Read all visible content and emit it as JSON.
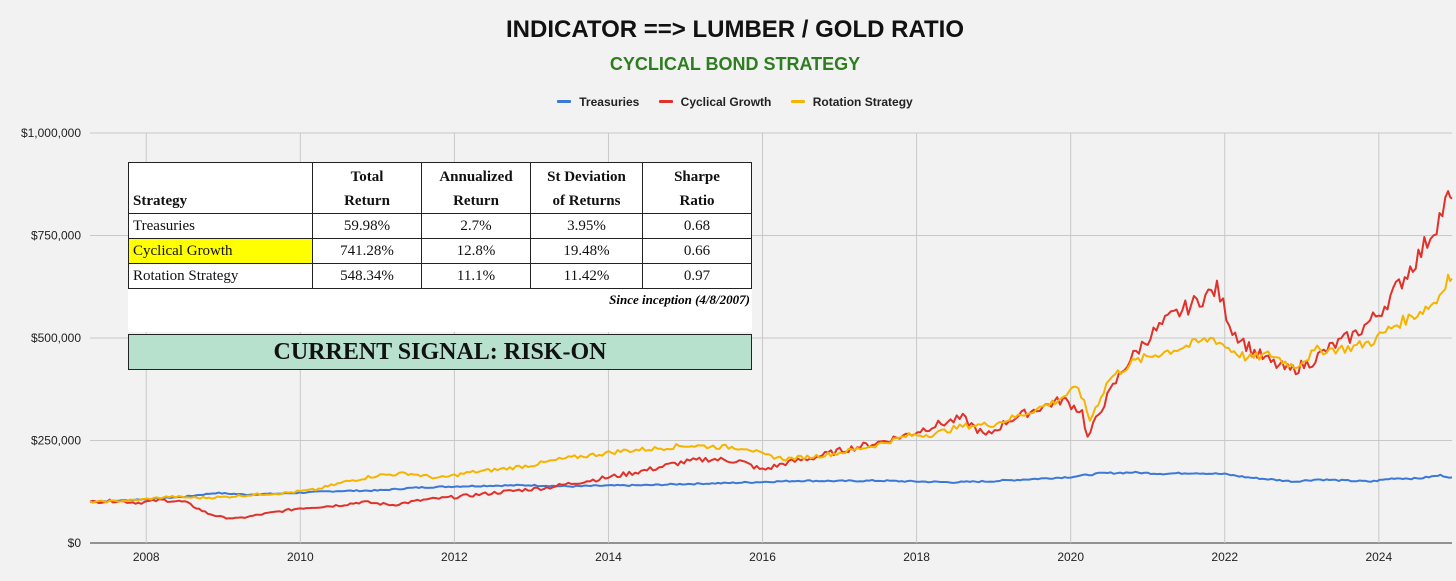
{
  "chart_data": {
    "type": "line",
    "title": "INDICATOR ==> LUMBER / GOLD RATIO",
    "subtitle": "CYCLICAL BOND STRATEGY",
    "legend_position": "top-center",
    "grid": true,
    "y_ticks": [
      "$1,000,000",
      "$750,000",
      "$500,000",
      "$250,000",
      "$0"
    ],
    "y_tick_values": [
      1000000,
      750000,
      500000,
      250000,
      0
    ],
    "x_ticks": [
      "2008",
      "2010",
      "2012",
      "2014",
      "2016",
      "2018",
      "2020",
      "2022",
      "2024"
    ],
    "x_tick_values": [
      2008,
      2010,
      2012,
      2014,
      2016,
      2018,
      2020,
      2022,
      2024
    ],
    "xlim": [
      2007.27,
      2024.95
    ],
    "ylim": [
      0,
      1000000
    ],
    "series": [
      {
        "name": "Treasuries",
        "color": "#3c78d8",
        "points": [
          [
            2007.27,
            100000
          ],
          [
            2007.6,
            103000
          ],
          [
            2008.0,
            107000
          ],
          [
            2008.5,
            113000
          ],
          [
            2008.9,
            122000
          ],
          [
            2009.3,
            118000
          ],
          [
            2009.8,
            121000
          ],
          [
            2010.5,
            127000
          ],
          [
            2011.0,
            128000
          ],
          [
            2011.5,
            135000
          ],
          [
            2012.0,
            138000
          ],
          [
            2012.5,
            140000
          ],
          [
            2013.0,
            141000
          ],
          [
            2013.5,
            138000
          ],
          [
            2014.0,
            140000
          ],
          [
            2014.5,
            141000
          ],
          [
            2015.0,
            144000
          ],
          [
            2015.5,
            146000
          ],
          [
            2016.0,
            149000
          ],
          [
            2016.5,
            152000
          ],
          [
            2017.0,
            151000
          ],
          [
            2017.5,
            152000
          ],
          [
            2018.0,
            150000
          ],
          [
            2018.5,
            148000
          ],
          [
            2019.0,
            151000
          ],
          [
            2019.5,
            156000
          ],
          [
            2020.0,
            161000
          ],
          [
            2020.4,
            170000
          ],
          [
            2020.8,
            172000
          ],
          [
            2021.2,
            169000
          ],
          [
            2021.6,
            171000
          ],
          [
            2022.0,
            168000
          ],
          [
            2022.3,
            160000
          ],
          [
            2022.6,
            155000
          ],
          [
            2022.9,
            150000
          ],
          [
            2023.2,
            155000
          ],
          [
            2023.6,
            152000
          ],
          [
            2023.9,
            150000
          ],
          [
            2024.2,
            158000
          ],
          [
            2024.5,
            157000
          ],
          [
            2024.8,
            165000
          ],
          [
            2024.95,
            160000
          ]
        ]
      },
      {
        "name": "Cyclical Growth",
        "color": "#e0322a",
        "points": [
          [
            2007.27,
            100000
          ],
          [
            2007.6,
            103000
          ],
          [
            2007.9,
            98000
          ],
          [
            2008.2,
            105000
          ],
          [
            2008.5,
            100000
          ],
          [
            2008.8,
            72000
          ],
          [
            2009.0,
            62000
          ],
          [
            2009.2,
            60000
          ],
          [
            2009.5,
            70000
          ],
          [
            2010.0,
            85000
          ],
          [
            2010.5,
            92000
          ],
          [
            2010.8,
            100000
          ],
          [
            2011.2,
            93000
          ],
          [
            2011.6,
            105000
          ],
          [
            2012.0,
            112000
          ],
          [
            2012.4,
            120000
          ],
          [
            2012.8,
            128000
          ],
          [
            2013.2,
            135000
          ],
          [
            2013.6,
            148000
          ],
          [
            2014.0,
            160000
          ],
          [
            2014.5,
            178000
          ],
          [
            2014.9,
            195000
          ],
          [
            2015.3,
            205000
          ],
          [
            2015.7,
            200000
          ],
          [
            2016.0,
            178000
          ],
          [
            2016.3,
            195000
          ],
          [
            2016.7,
            210000
          ],
          [
            2017.0,
            225000
          ],
          [
            2017.5,
            245000
          ],
          [
            2017.9,
            265000
          ],
          [
            2018.2,
            285000
          ],
          [
            2018.6,
            305000
          ],
          [
            2018.9,
            260000
          ],
          [
            2019.2,
            300000
          ],
          [
            2019.6,
            330000
          ],
          [
            2019.9,
            350000
          ],
          [
            2020.15,
            320000
          ],
          [
            2020.22,
            255000
          ],
          [
            2020.4,
            330000
          ],
          [
            2020.7,
            430000
          ],
          [
            2021.0,
            500000
          ],
          [
            2021.3,
            550000
          ],
          [
            2021.6,
            585000
          ],
          [
            2021.9,
            620000
          ],
          [
            2022.1,
            520000
          ],
          [
            2022.35,
            470000
          ],
          [
            2022.6,
            440000
          ],
          [
            2022.85,
            420000
          ],
          [
            2023.1,
            440000
          ],
          [
            2023.4,
            480000
          ],
          [
            2023.7,
            510000
          ],
          [
            2024.0,
            560000
          ],
          [
            2024.3,
            640000
          ],
          [
            2024.55,
            710000
          ],
          [
            2024.75,
            780000
          ],
          [
            2024.9,
            840000
          ],
          [
            2024.95,
            840000
          ]
        ]
      },
      {
        "name": "Rotation Strategy",
        "color": "#f6b400",
        "points": [
          [
            2007.27,
            100000
          ],
          [
            2007.6,
            102000
          ],
          [
            2007.9,
            105000
          ],
          [
            2008.3,
            113000
          ],
          [
            2008.7,
            110000
          ],
          [
            2009.0,
            112000
          ],
          [
            2009.4,
            118000
          ],
          [
            2009.8,
            122000
          ],
          [
            2010.2,
            130000
          ],
          [
            2010.6,
            150000
          ],
          [
            2011.0,
            165000
          ],
          [
            2011.4,
            170000
          ],
          [
            2011.8,
            158000
          ],
          [
            2012.2,
            172000
          ],
          [
            2012.6,
            180000
          ],
          [
            2013.0,
            190000
          ],
          [
            2013.4,
            205000
          ],
          [
            2013.8,
            215000
          ],
          [
            2014.2,
            225000
          ],
          [
            2014.6,
            230000
          ],
          [
            2015.0,
            238000
          ],
          [
            2015.4,
            235000
          ],
          [
            2015.8,
            232000
          ],
          [
            2016.0,
            215000
          ],
          [
            2016.3,
            205000
          ],
          [
            2016.7,
            212000
          ],
          [
            2017.0,
            220000
          ],
          [
            2017.5,
            240000
          ],
          [
            2017.9,
            262000
          ],
          [
            2018.2,
            265000
          ],
          [
            2018.6,
            285000
          ],
          [
            2019.0,
            290000
          ],
          [
            2019.4,
            315000
          ],
          [
            2019.8,
            345000
          ],
          [
            2020.1,
            380000
          ],
          [
            2020.25,
            300000
          ],
          [
            2020.5,
            400000
          ],
          [
            2020.8,
            440000
          ],
          [
            2021.1,
            460000
          ],
          [
            2021.5,
            480000
          ],
          [
            2021.85,
            500000
          ],
          [
            2022.05,
            475000
          ],
          [
            2022.3,
            450000
          ],
          [
            2022.6,
            460000
          ],
          [
            2022.9,
            430000
          ],
          [
            2023.2,
            470000
          ],
          [
            2023.6,
            475000
          ],
          [
            2023.9,
            490000
          ],
          [
            2024.2,
            530000
          ],
          [
            2024.5,
            560000
          ],
          [
            2024.75,
            590000
          ],
          [
            2024.9,
            650000
          ],
          [
            2024.95,
            645000
          ]
        ]
      }
    ]
  },
  "stats_table": {
    "headers": [
      {
        "line1": "",
        "line2": "Strategy"
      },
      {
        "line1": "Total",
        "line2": "Return"
      },
      {
        "line1": "Annualized",
        "line2": "Return"
      },
      {
        "line1": "St Deviation",
        "line2": "of Returns"
      },
      {
        "line1": "Sharpe",
        "line2": "Ratio"
      }
    ],
    "rows": [
      [
        "Treasuries",
        "59.98%",
        "2.7%",
        "3.95%",
        "0.68"
      ],
      [
        "Cyclical Growth",
        "741.28%",
        "12.8%",
        "19.48%",
        "0.66"
      ],
      [
        "Rotation Strategy",
        "548.34%",
        "11.1%",
        "11.42%",
        "0.97"
      ]
    ],
    "highlight_color": "#ffff00",
    "note": "Since inception (4/8/2007)"
  },
  "signal": {
    "text": "CURRENT SIGNAL: RISK-ON",
    "background": "#b7e1cd"
  }
}
